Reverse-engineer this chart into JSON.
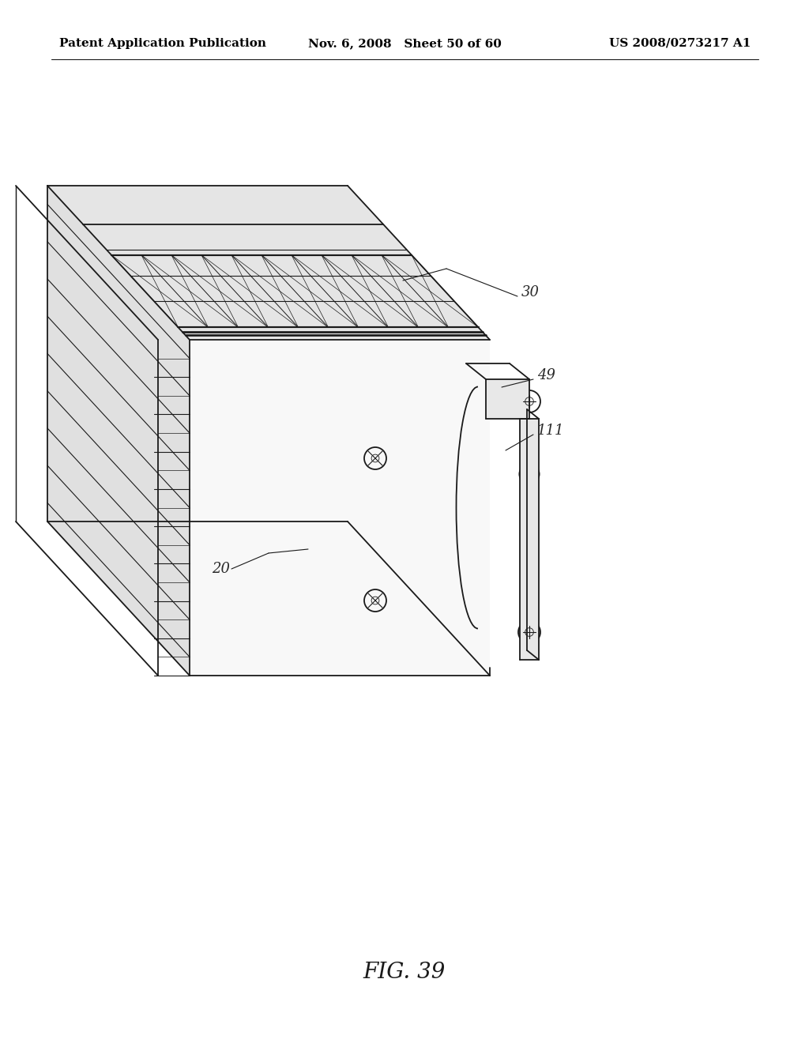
{
  "background_color": "#ffffff",
  "header_left": "Patent Application Publication",
  "header_middle": "Nov. 6, 2008   Sheet 50 of 60",
  "header_right": "US 2008/0273217 A1",
  "figure_caption": "FIG. 39",
  "line_color": "#1a1a1a",
  "label_color": "#2a2a2a",
  "header_fontsize": 11,
  "caption_fontsize": 20,
  "label_fontsize": 13,
  "lw_main": 1.3,
  "lw_thick": 2.0,
  "lw_thin": 0.7
}
